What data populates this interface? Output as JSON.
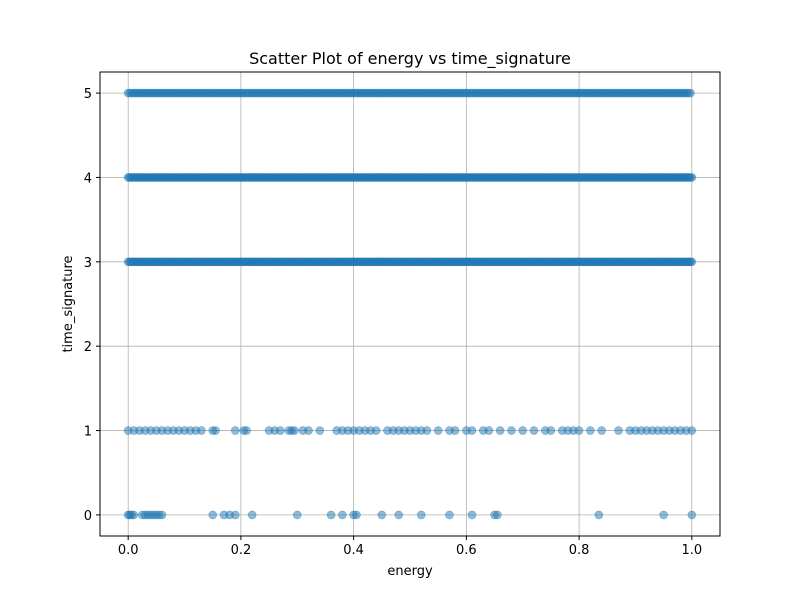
{
  "chart_data": {
    "type": "scatter",
    "title": "Scatter Plot of energy vs time_signature",
    "xlabel": "energy",
    "ylabel": "time_signature",
    "xlim": [
      -0.05,
      1.05
    ],
    "ylim": [
      -0.25,
      5.25
    ],
    "xticks": [
      0.0,
      0.2,
      0.4,
      0.6,
      0.8,
      1.0
    ],
    "xtick_labels": [
      "0.0",
      "0.2",
      "0.4",
      "0.6",
      "0.8",
      "1.0"
    ],
    "yticks": [
      0,
      1,
      2,
      3,
      4,
      5
    ],
    "ytick_labels": [
      "0",
      "1",
      "2",
      "3",
      "4",
      "5"
    ],
    "grid": true,
    "marker_color": "#1f77b4",
    "marker_alpha": 0.5,
    "series": [
      {
        "values": [
          {
            "y": 0,
            "x": [
              0.0,
              0.003,
              0.006,
              0.01,
              0.025,
              0.03,
              0.035,
              0.04,
              0.045,
              0.05,
              0.055,
              0.06,
              0.15,
              0.17,
              0.18,
              0.19,
              0.22,
              0.3,
              0.36,
              0.38,
              0.4,
              0.405,
              0.45,
              0.48,
              0.52,
              0.57,
              0.61,
              0.65,
              0.655,
              0.835,
              0.95,
              1.0
            ]
          },
          {
            "y": 1,
            "x": [
              0.0,
              0.01,
              0.02,
              0.03,
              0.04,
              0.05,
              0.06,
              0.07,
              0.08,
              0.09,
              0.1,
              0.11,
              0.12,
              0.13,
              0.15,
              0.155,
              0.19,
              0.205,
              0.21,
              0.25,
              0.26,
              0.27,
              0.285,
              0.29,
              0.295,
              0.31,
              0.32,
              0.34,
              0.37,
              0.38,
              0.39,
              0.4,
              0.41,
              0.42,
              0.43,
              0.44,
              0.46,
              0.47,
              0.48,
              0.49,
              0.5,
              0.51,
              0.52,
              0.53,
              0.55,
              0.57,
              0.58,
              0.6,
              0.61,
              0.63,
              0.64,
              0.66,
              0.68,
              0.7,
              0.72,
              0.74,
              0.75,
              0.77,
              0.78,
              0.79,
              0.8,
              0.82,
              0.84,
              0.87,
              0.89,
              0.9,
              0.91,
              0.92,
              0.93,
              0.94,
              0.95,
              0.96,
              0.97,
              0.98,
              0.99,
              1.0
            ]
          },
          {
            "y": 3,
            "x": "dense"
          },
          {
            "y": 4,
            "x": "dense"
          },
          {
            "y": 5,
            "x": "dense"
          }
        ]
      }
    ]
  }
}
